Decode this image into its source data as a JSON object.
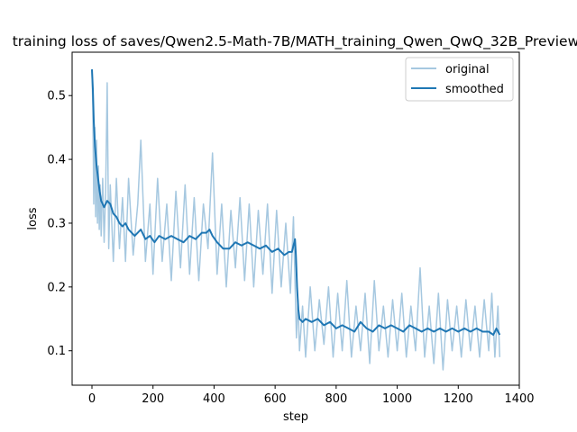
{
  "chart_data": {
    "type": "line",
    "title": "training loss of saves/Qwen2.5-Math-7B/MATH_training_Qwen_QwQ_32B_Preview",
    "xlabel": "step",
    "ylabel": "loss",
    "xlim": [
      -65,
      1400
    ],
    "ylim": [
      0.046,
      0.568
    ],
    "xticks": [
      0,
      200,
      400,
      600,
      800,
      1000,
      1200,
      1400
    ],
    "yticks": [
      0.1,
      0.2,
      0.3,
      0.4,
      0.5
    ],
    "xtick_labels": [
      "0",
      "200",
      "400",
      "600",
      "800",
      "1000",
      "1200",
      "1400"
    ],
    "ytick_labels": [
      "0.1",
      "0.2",
      "0.3",
      "0.4",
      "0.5"
    ],
    "legend": {
      "position": "top-right"
    },
    "grid": false,
    "colors": {
      "original": "#a6c8e0",
      "smoothed": "#1f77b4"
    },
    "series": [
      {
        "name": "original",
        "x": [
          0,
          3,
          6,
          9,
          12,
          15,
          18,
          21,
          24,
          27,
          30,
          35,
          40,
          45,
          50,
          55,
          60,
          70,
          80,
          90,
          100,
          110,
          120,
          135,
          150,
          160,
          175,
          190,
          200,
          215,
          230,
          245,
          260,
          275,
          290,
          305,
          320,
          335,
          350,
          365,
          380,
          395,
          410,
          425,
          440,
          455,
          470,
          485,
          500,
          515,
          530,
          545,
          560,
          575,
          590,
          605,
          620,
          635,
          650,
          660,
          665,
          670,
          675,
          680,
          690,
          700,
          715,
          730,
          745,
          760,
          775,
          790,
          805,
          820,
          835,
          850,
          865,
          880,
          895,
          910,
          925,
          940,
          955,
          970,
          985,
          1000,
          1015,
          1030,
          1045,
          1060,
          1075,
          1090,
          1105,
          1120,
          1135,
          1150,
          1165,
          1180,
          1195,
          1210,
          1225,
          1240,
          1255,
          1270,
          1285,
          1300,
          1310,
          1320,
          1330,
          1336
        ],
        "y": [
          0.54,
          0.48,
          0.33,
          0.45,
          0.31,
          0.43,
          0.3,
          0.39,
          0.29,
          0.36,
          0.28,
          0.37,
          0.27,
          0.35,
          0.52,
          0.26,
          0.36,
          0.24,
          0.37,
          0.26,
          0.34,
          0.24,
          0.37,
          0.25,
          0.33,
          0.43,
          0.24,
          0.33,
          0.22,
          0.37,
          0.24,
          0.33,
          0.21,
          0.35,
          0.23,
          0.36,
          0.22,
          0.34,
          0.21,
          0.33,
          0.26,
          0.41,
          0.22,
          0.33,
          0.2,
          0.32,
          0.23,
          0.34,
          0.21,
          0.33,
          0.2,
          0.32,
          0.22,
          0.33,
          0.19,
          0.32,
          0.2,
          0.3,
          0.19,
          0.31,
          0.21,
          0.12,
          0.18,
          0.1,
          0.17,
          0.09,
          0.2,
          0.1,
          0.18,
          0.11,
          0.2,
          0.09,
          0.19,
          0.1,
          0.21,
          0.09,
          0.17,
          0.1,
          0.19,
          0.08,
          0.21,
          0.1,
          0.17,
          0.09,
          0.18,
          0.1,
          0.19,
          0.09,
          0.17,
          0.1,
          0.23,
          0.09,
          0.17,
          0.08,
          0.19,
          0.07,
          0.18,
          0.1,
          0.17,
          0.09,
          0.18,
          0.1,
          0.17,
          0.09,
          0.18,
          0.1,
          0.19,
          0.09,
          0.17,
          0.09
        ]
      },
      {
        "name": "smoothed",
        "x": [
          0,
          3,
          6,
          10,
          15,
          20,
          25,
          30,
          40,
          50,
          60,
          70,
          80,
          90,
          100,
          110,
          120,
          130,
          140,
          150,
          160,
          175,
          190,
          205,
          220,
          240,
          260,
          280,
          300,
          320,
          340,
          360,
          375,
          385,
          395,
          410,
          430,
          450,
          470,
          490,
          510,
          530,
          550,
          570,
          590,
          610,
          630,
          645,
          655,
          660,
          665,
          668,
          672,
          676,
          680,
          690,
          700,
          720,
          740,
          760,
          780,
          800,
          820,
          840,
          860,
          880,
          900,
          920,
          940,
          960,
          980,
          1000,
          1020,
          1040,
          1060,
          1080,
          1100,
          1120,
          1140,
          1160,
          1180,
          1200,
          1220,
          1240,
          1260,
          1280,
          1300,
          1315,
          1325,
          1336
        ],
        "y": [
          0.541,
          0.51,
          0.46,
          0.42,
          0.39,
          0.37,
          0.35,
          0.335,
          0.325,
          0.335,
          0.33,
          0.315,
          0.31,
          0.3,
          0.295,
          0.3,
          0.29,
          0.285,
          0.28,
          0.285,
          0.29,
          0.275,
          0.28,
          0.27,
          0.28,
          0.275,
          0.28,
          0.275,
          0.27,
          0.28,
          0.275,
          0.285,
          0.285,
          0.29,
          0.28,
          0.27,
          0.26,
          0.26,
          0.27,
          0.265,
          0.27,
          0.265,
          0.26,
          0.265,
          0.255,
          0.26,
          0.25,
          0.255,
          0.255,
          0.265,
          0.275,
          0.25,
          0.2,
          0.165,
          0.15,
          0.145,
          0.15,
          0.145,
          0.15,
          0.14,
          0.145,
          0.135,
          0.14,
          0.135,
          0.13,
          0.145,
          0.135,
          0.13,
          0.14,
          0.135,
          0.14,
          0.135,
          0.13,
          0.14,
          0.135,
          0.13,
          0.135,
          0.13,
          0.135,
          0.13,
          0.135,
          0.13,
          0.135,
          0.13,
          0.135,
          0.13,
          0.13,
          0.125,
          0.135,
          0.125
        ]
      }
    ]
  }
}
